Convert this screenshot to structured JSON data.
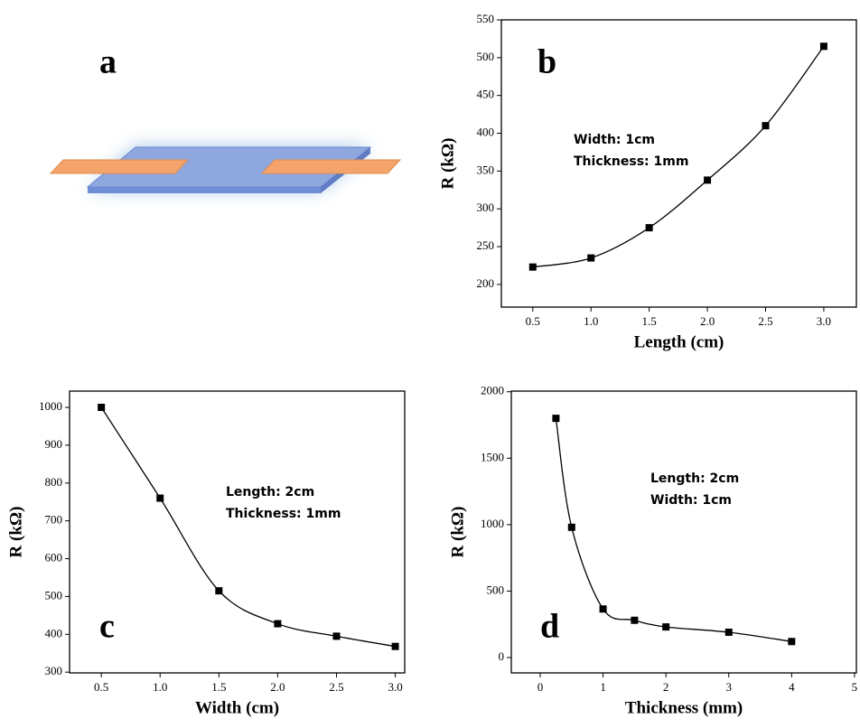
{
  "diagram": {
    "label": "a"
  },
  "chart_data": [
    {
      "type": "scatter",
      "panel_label": "b",
      "x_label": "Length (cm)",
      "y_label": "R (kΩ)",
      "annotations": [
        "Width: 1cm",
        "Thickness: 1mm"
      ],
      "x": [
        0.5,
        1.0,
        1.5,
        2.0,
        2.5,
        3.0
      ],
      "values": [
        223,
        235,
        275,
        338,
        410,
        515
      ],
      "color": "#000000",
      "fit_line": true,
      "xlim": [
        0.23,
        3.28
      ],
      "ylim": [
        170,
        550
      ],
      "xticks": [
        0.5,
        {
          "value": 1,
          "label": "1.0"
        },
        1.5,
        {
          "value": 2,
          "label": "2.0"
        },
        2.5,
        {
          "value": 3,
          "label": "3.0"
        }
      ],
      "yticks": [
        200,
        250,
        300,
        350,
        400,
        450,
        500,
        550
      ]
    },
    {
      "type": "scatter",
      "panel_label": "c",
      "x_label": "Width (cm)",
      "y_label": "R (kΩ)",
      "annotations": [
        "Length: 2cm",
        "Thickness: 1mm"
      ],
      "x": [
        0.5,
        1.0,
        1.5,
        2.0,
        2.5,
        3.0
      ],
      "values": [
        1000,
        760,
        515,
        428,
        395,
        368
      ],
      "color": "#000000",
      "fit_line": true,
      "xlim": [
        0.23,
        3.08
      ],
      "ylim": [
        298,
        1043
      ],
      "xticks": [
        0.5,
        {
          "value": 1,
          "label": "1.0"
        },
        1.5,
        {
          "value": 2,
          "label": "2.0"
        },
        2.5,
        {
          "value": 3,
          "label": "3.0"
        }
      ],
      "yticks": [
        300,
        400,
        500,
        600,
        700,
        800,
        900,
        1000
      ]
    },
    {
      "type": "scatter",
      "panel_label": "d",
      "x_label": "Thickness (mm)",
      "y_label": "R (kΩ)",
      "annotations": [
        "Length: 2cm",
        "Width: 1cm"
      ],
      "x": [
        0.25,
        0.5,
        1,
        1.5,
        2,
        3,
        4
      ],
      "values": [
        1800,
        980,
        365,
        280,
        230,
        190,
        120
      ],
      "color": "#000000",
      "fit_line": true,
      "xlim": [
        -0.46,
        5.03
      ],
      "ylim": [
        -116,
        2005
      ],
      "xticks": [
        0,
        1,
        2,
        3,
        4,
        5
      ],
      "yticks": [
        0,
        500,
        1000,
        1500,
        2000
      ]
    }
  ]
}
